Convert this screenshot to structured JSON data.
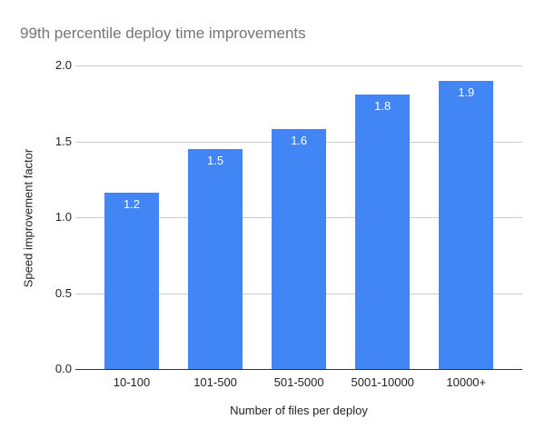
{
  "chart_data": {
    "type": "bar",
    "title": "99th percentile deploy time improvements",
    "xlabel": "Number of files per deploy",
    "ylabel": "Speed improvement factor",
    "categories": [
      "10-100",
      "101-500",
      "501-5000",
      "5001-10000",
      "10000+"
    ],
    "values": [
      1.16,
      1.45,
      1.58,
      1.81,
      1.9
    ],
    "bar_labels": [
      "1.2",
      "1.5",
      "1.6",
      "1.8",
      "1.9"
    ],
    "ylim": [
      0,
      2.0
    ],
    "yticks": [
      0.0,
      0.5,
      1.0,
      1.5,
      2.0
    ],
    "ytick_labels": [
      "0.0",
      "0.5",
      "1.0",
      "1.5",
      "2.0"
    ],
    "grid": true,
    "legend": false,
    "colors": {
      "bar": "#4285f4",
      "bar_label": "#ffffff",
      "title": "#757575",
      "axis_text": "#222222",
      "gridline": "#cccccc",
      "axis_line": "#333333",
      "background": "#ffffff"
    }
  }
}
